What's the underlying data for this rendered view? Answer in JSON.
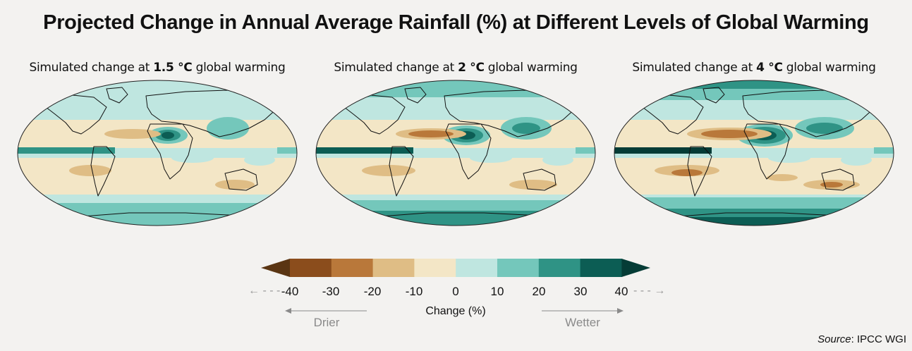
{
  "title": "Projected Change in Annual Average Rainfall (%) at Different Levels of Global Warming",
  "panels": [
    {
      "prefix": "Simulated change at ",
      "level": "1.5 °C",
      "suffix": " global warming"
    },
    {
      "prefix": "Simulated change at ",
      "level": "2 °C",
      "suffix": " global warming"
    },
    {
      "prefix": "Simulated change at ",
      "level": "4 °C",
      "suffix": " global warming"
    }
  ],
  "legend": {
    "ticks": [
      "-40",
      "-30",
      "-20",
      "-10",
      "0",
      "10",
      "20",
      "30",
      "40"
    ],
    "axis_label": "Change (%)",
    "drier_label": "Drier",
    "wetter_label": "Wetter",
    "colors": [
      "#5a3513",
      "#8b4d1c",
      "#b9783a",
      "#dfbd85",
      "#f3e6c6",
      "#bfe6e0",
      "#74c7bb",
      "#2f9385",
      "#0c5d54",
      "#053c36"
    ]
  },
  "source": {
    "label": "Source",
    "text": ": IPCC WGI"
  }
}
